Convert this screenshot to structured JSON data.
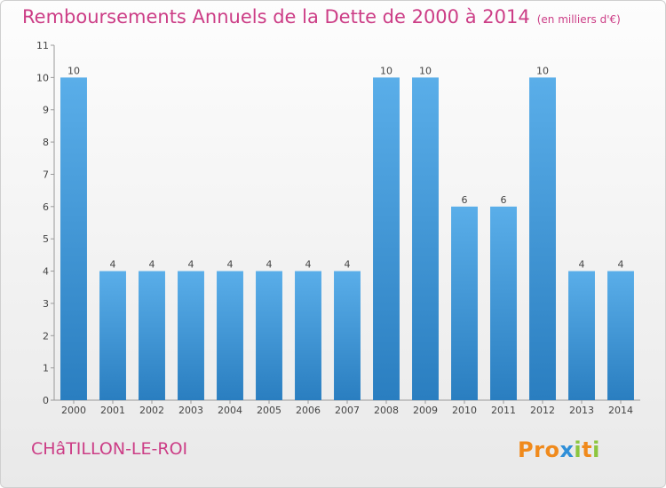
{
  "header": {
    "title": "Remboursements Annuels de la Dette de 2000 à 2014",
    "subtitle": "(en milliers d'€)"
  },
  "footer": {
    "city": "CHâTILLON-LE-ROI",
    "logo_text": "Proxiti"
  },
  "colors": {
    "title": "#cc3d86",
    "bar_light": "#5aaee9",
    "bar_dark": "#2a7ec0",
    "logo_letters": [
      "#f08a1c",
      "#f08a1c",
      "#f08a1c",
      "#2f8fd8",
      "#8cc63f",
      "#f08a1c",
      "#8cc63f"
    ]
  },
  "chart_data": {
    "type": "bar",
    "title": "Remboursements Annuels de la Dette de 2000 à 2014",
    "subtitle": "(en milliers d'€)",
    "categories": [
      "2000",
      "2001",
      "2002",
      "2003",
      "2004",
      "2005",
      "2006",
      "2007",
      "2008",
      "2009",
      "2010",
      "2011",
      "2012",
      "2013",
      "2014"
    ],
    "values": [
      10,
      4,
      4,
      4,
      4,
      4,
      4,
      4,
      10,
      10,
      6,
      6,
      10,
      4,
      4
    ],
    "ylim": [
      0,
      11
    ],
    "yticks": [
      0,
      1,
      2,
      3,
      4,
      5,
      6,
      7,
      8,
      9,
      10,
      11
    ],
    "xlabel": "",
    "ylabel": "",
    "grid": false,
    "legend": "none",
    "data_labels": true
  }
}
